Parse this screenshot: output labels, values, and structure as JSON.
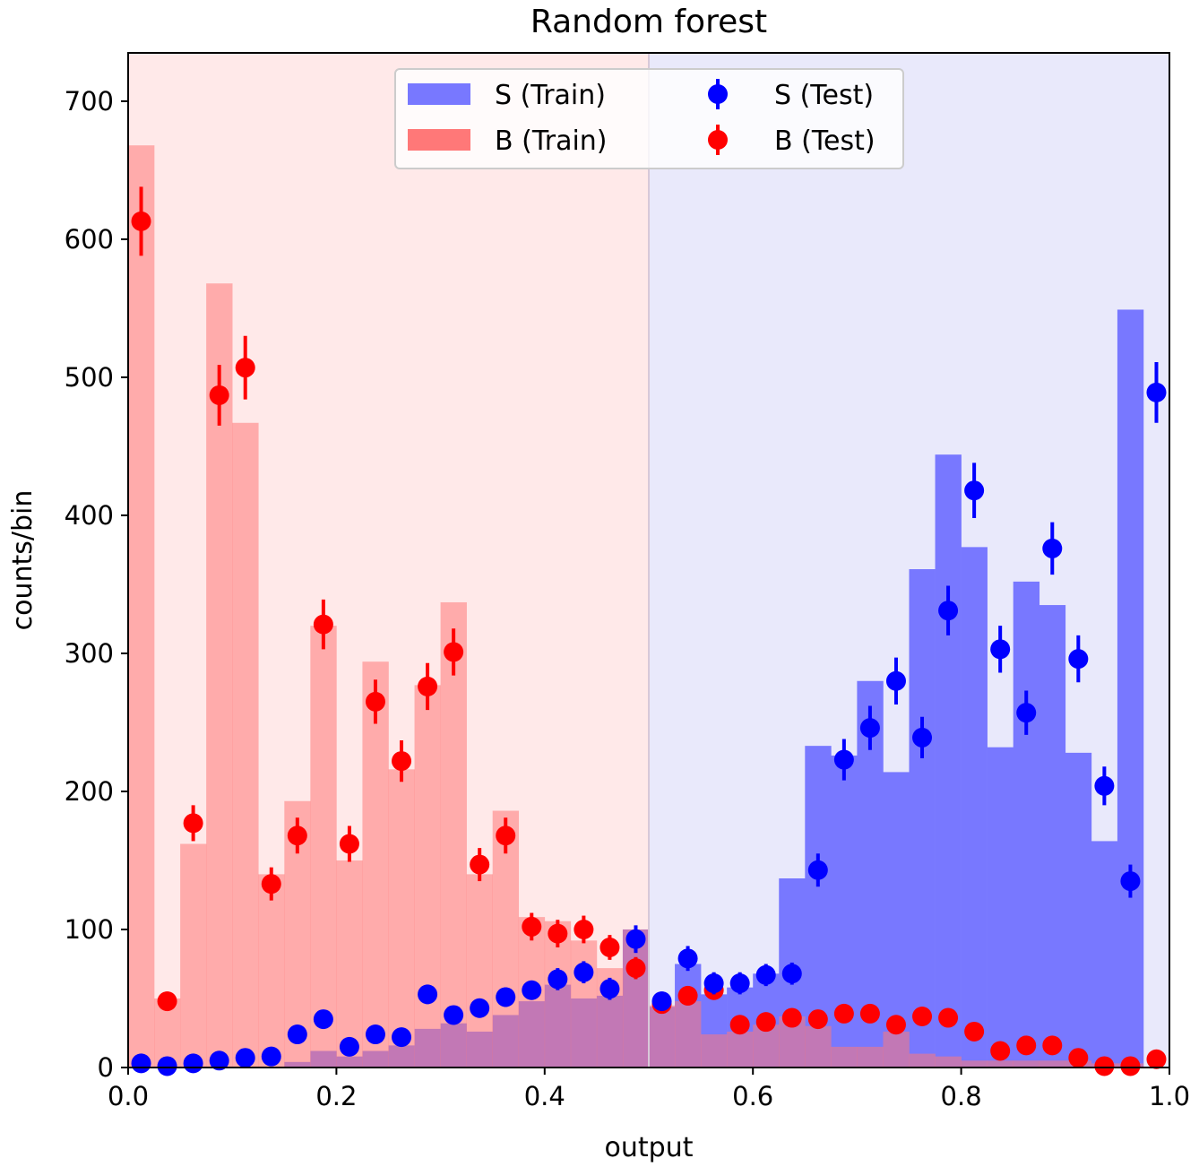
{
  "chart_data": {
    "type": "histogram",
    "title": "Random forest",
    "xlabel": "output",
    "ylabel": "counts/bin",
    "xlim": [
      0,
      1
    ],
    "ylim": [
      0,
      735
    ],
    "xticks": [
      0.0,
      0.2,
      0.4,
      0.6,
      0.8,
      1.0
    ],
    "xtick_labels": [
      "0.0",
      "0.2",
      "0.4",
      "0.6",
      "0.8",
      "1.0"
    ],
    "yticks": [
      0,
      100,
      200,
      300,
      400,
      500,
      600,
      700
    ],
    "ytick_labels": [
      "0",
      "100",
      "200",
      "300",
      "400",
      "500",
      "600",
      "700"
    ],
    "bins": 40,
    "regions": [
      {
        "x0": 0.0,
        "x1": 0.5,
        "color": "#ffe9e9"
      },
      {
        "x0": 0.5,
        "x1": 1.0,
        "color": "#e9e9fb"
      }
    ],
    "colors": {
      "s_train": "#7878ff",
      "b_train": "#ff7878",
      "s_test": "#0000ff",
      "b_test": "#ff0000"
    },
    "legend": {
      "placement": "top-center",
      "entries": [
        "S (Train)",
        "B (Train)",
        "S (Test)",
        "B (Test)"
      ]
    },
    "series": [
      {
        "name": "S (Train)",
        "kind": "hist",
        "values": [
          0,
          0,
          0,
          0,
          0,
          0,
          4,
          12,
          8,
          12,
          16,
          28,
          32,
          26,
          38,
          48,
          60,
          50,
          52,
          100,
          44,
          75,
          53,
          58,
          68,
          137,
          233,
          226,
          280,
          214,
          361,
          444,
          377,
          232,
          352,
          335,
          228,
          164,
          549,
          0
        ]
      },
      {
        "name": "B (Train)",
        "kind": "hist",
        "values": [
          668,
          50,
          162,
          568,
          467,
          140,
          193,
          320,
          150,
          294,
          216,
          277,
          337,
          140,
          186,
          109,
          106,
          92,
          72,
          100,
          45,
          48,
          24,
          26,
          31,
          37,
          30,
          15,
          15,
          26,
          10,
          8,
          5,
          5,
          5,
          5,
          5,
          3,
          3,
          0
        ]
      },
      {
        "name": "S (Test)",
        "kind": "points",
        "values": [
          3,
          1,
          3,
          5,
          7,
          8,
          24,
          35,
          15,
          24,
          22,
          53,
          38,
          43,
          51,
          56,
          64,
          69,
          57,
          93,
          48,
          79,
          61,
          61,
          67,
          68,
          143,
          223,
          246,
          280,
          239,
          331,
          418,
          303,
          257,
          376,
          296,
          204,
          135,
          489
        ],
        "errors": [
          2,
          1,
          2,
          2,
          3,
          3,
          5,
          6,
          4,
          5,
          5,
          7,
          6,
          7,
          7,
          7,
          8,
          8,
          8,
          10,
          7,
          9,
          8,
          8,
          8,
          8,
          12,
          15,
          16,
          17,
          15,
          18,
          20,
          17,
          16,
          19,
          17,
          14,
          12,
          22
        ]
      },
      {
        "name": "B (Test)",
        "kind": "points",
        "values": [
          613,
          48,
          177,
          487,
          507,
          133,
          168,
          321,
          162,
          265,
          222,
          276,
          301,
          147,
          168,
          102,
          97,
          100,
          87,
          72,
          46,
          52,
          56,
          31,
          33,
          36,
          35,
          39,
          39,
          31,
          37,
          36,
          26,
          12,
          16,
          16,
          7,
          1,
          1,
          6
        ],
        "errors": [
          25,
          7,
          13,
          22,
          23,
          12,
          13,
          18,
          13,
          16,
          15,
          17,
          17,
          12,
          13,
          10,
          10,
          10,
          9,
          8,
          7,
          7,
          7,
          6,
          6,
          6,
          6,
          6,
          6,
          6,
          6,
          6,
          5,
          3,
          4,
          4,
          3,
          1,
          1,
          2
        ]
      }
    ]
  }
}
